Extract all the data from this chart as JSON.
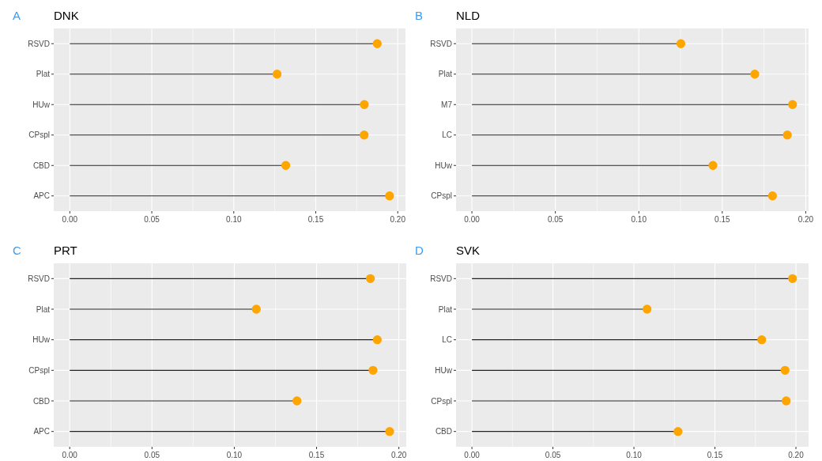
{
  "chart_data": [
    {
      "type": "lollipop",
      "title": "DNK",
      "annotations": [
        "A"
      ],
      "orientation": "horizontal",
      "categories": [
        "RSVD",
        "Plat",
        "HUw",
        "CPspl",
        "CBD",
        "APC"
      ],
      "values": [
        0.1875,
        0.1264,
        0.1796,
        0.1795,
        0.1317,
        0.195
      ],
      "color": "#ffa500",
      "xlim": [
        -0.0098,
        0.2047
      ],
      "xticks": [
        {
          "value": 0,
          "label": "0.00"
        },
        {
          "value": 0.025,
          "label": null
        },
        {
          "value": 0.05,
          "label": "0.05"
        },
        {
          "value": 0.075,
          "label": null
        },
        {
          "value": 0.1,
          "label": "0.10"
        },
        {
          "value": 0.125,
          "label": null
        },
        {
          "value": 0.15,
          "label": "0.15"
        },
        {
          "value": 0.175,
          "label": null
        },
        {
          "value": 0.2,
          "label": "0.20"
        }
      ],
      "grid": true,
      "marker": "circle"
    },
    {
      "type": "lollipop",
      "title": "NLD",
      "annotations": [
        "B"
      ],
      "orientation": "horizontal",
      "categories": [
        "RSVD",
        "Plat",
        "M7",
        "LC",
        "HUw",
        "CPspl"
      ],
      "values": [
        0.1252,
        0.1695,
        0.1921,
        0.189,
        0.1444,
        0.1801
      ],
      "color": "#ffa500",
      "xlim": [
        -0.0095,
        0.2017
      ],
      "xticks": [
        {
          "value": 0,
          "label": "0.00"
        },
        {
          "value": 0.025,
          "label": null
        },
        {
          "value": 0.05,
          "label": "0.05"
        },
        {
          "value": 0.075,
          "label": null
        },
        {
          "value": 0.1,
          "label": "0.10"
        },
        {
          "value": 0.125,
          "label": null
        },
        {
          "value": 0.15,
          "label": "0.15"
        },
        {
          "value": 0.175,
          "label": null
        },
        {
          "value": 0.2,
          "label": "0.20"
        }
      ],
      "grid": true,
      "marker": "circle"
    },
    {
      "type": "lollipop",
      "title": "PRT",
      "annotations": [
        "C"
      ],
      "orientation": "horizontal",
      "categories": [
        "RSVD",
        "Plat",
        "HUw",
        "CPspl",
        "CBD",
        "APC"
      ],
      "values": [
        0.1827,
        0.1134,
        0.1869,
        0.1843,
        0.1381,
        0.1944
      ],
      "color": "#ffa500",
      "xlim": [
        -0.0097,
        0.2045
      ],
      "xticks": [
        {
          "value": 0,
          "label": "0.00"
        },
        {
          "value": 0.025,
          "label": null
        },
        {
          "value": 0.05,
          "label": "0.05"
        },
        {
          "value": 0.075,
          "label": null
        },
        {
          "value": 0.1,
          "label": "0.10"
        },
        {
          "value": 0.125,
          "label": null
        },
        {
          "value": 0.15,
          "label": "0.15"
        },
        {
          "value": 0.175,
          "label": null
        },
        {
          "value": 0.2,
          "label": "0.20"
        }
      ],
      "grid": true,
      "marker": "circle"
    },
    {
      "type": "lollipop",
      "title": "SVK",
      "annotations": [
        "D"
      ],
      "orientation": "horizontal",
      "categories": [
        "RSVD",
        "Plat",
        "LC",
        "HUw",
        "CPspl",
        "CBD"
      ],
      "values": [
        0.1979,
        0.1081,
        0.1789,
        0.1933,
        0.194,
        0.1272
      ],
      "color": "#ffa500",
      "xlim": [
        -0.0098,
        0.2078
      ],
      "xticks": [
        {
          "value": 0,
          "label": "0.00"
        },
        {
          "value": 0.025,
          "label": null
        },
        {
          "value": 0.05,
          "label": "0.05"
        },
        {
          "value": 0.075,
          "label": null
        },
        {
          "value": 0.1,
          "label": "0.10"
        },
        {
          "value": 0.125,
          "label": null
        },
        {
          "value": 0.15,
          "label": "0.15"
        },
        {
          "value": 0.175,
          "label": null
        },
        {
          "value": 0.2,
          "label": "0.20"
        }
      ],
      "grid": true,
      "marker": "circle"
    }
  ]
}
